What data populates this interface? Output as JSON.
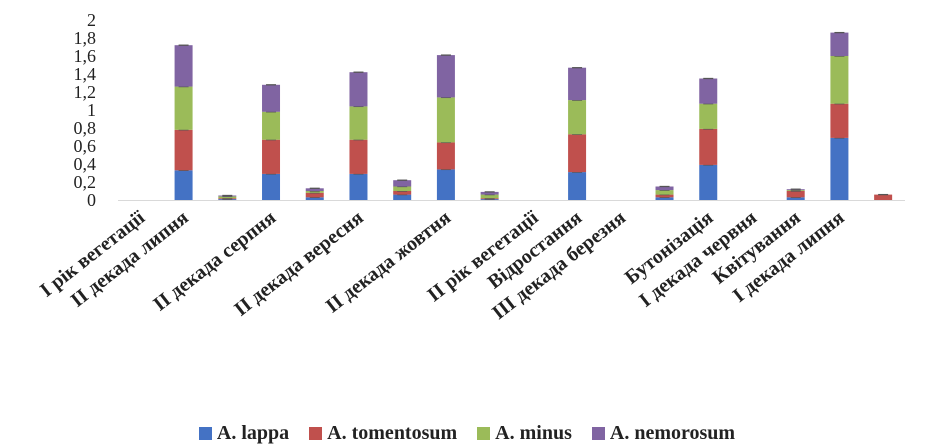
{
  "chart_data": {
    "type": "bar",
    "stacked": true,
    "categories": [
      "I рік вегетації",
      "II декада липня",
      "",
      "II декада серпня",
      "",
      "II декада вересня",
      "",
      "II декада жовтня",
      "",
      "II рік вегетації",
      "Відростання",
      "III декада березня",
      "",
      "Бутонізація",
      "I декада червня",
      "Квітування",
      "I декада липня",
      ""
    ],
    "series": [
      {
        "name": "A. lappa",
        "color": "#4472C4",
        "values": [
          0,
          0.33,
          0.01,
          0.29,
          0.03,
          0.29,
          0.06,
          0.34,
          0.01,
          0,
          0.31,
          0,
          0.03,
          0.39,
          0,
          0.03,
          0.69,
          0
        ]
      },
      {
        "name": "A. tomentosum",
        "color": "#C0504D",
        "values": [
          0,
          0.45,
          0.01,
          0.38,
          0.05,
          0.38,
          0.04,
          0.3,
          0.01,
          0,
          0.42,
          0,
          0.03,
          0.4,
          0,
          0.07,
          0.38,
          0.06
        ]
      },
      {
        "name": "A. minus",
        "color": "#9BBB59",
        "values": [
          0,
          0.48,
          0.02,
          0.31,
          0.02,
          0.37,
          0.05,
          0.5,
          0.04,
          0,
          0.38,
          0,
          0.05,
          0.28,
          0,
          0.01,
          0.53,
          0
        ]
      },
      {
        "name": "A. nemorosum",
        "color": "#8064A2",
        "values": [
          0,
          0.46,
          0.01,
          0.3,
          0.03,
          0.38,
          0.07,
          0.47,
          0.03,
          0,
          0.36,
          0,
          0.04,
          0.28,
          0,
          0.01,
          0.26,
          0
        ]
      }
    ],
    "yticks": [
      "2",
      "1,8",
      "1,6",
      "1,4",
      "1,2",
      "1",
      "0,8",
      "0,6",
      "0,4",
      "0,2",
      "0"
    ],
    "ylim": [
      0,
      2
    ],
    "grid": false,
    "error_bars": true,
    "legend_position": "bottom"
  }
}
